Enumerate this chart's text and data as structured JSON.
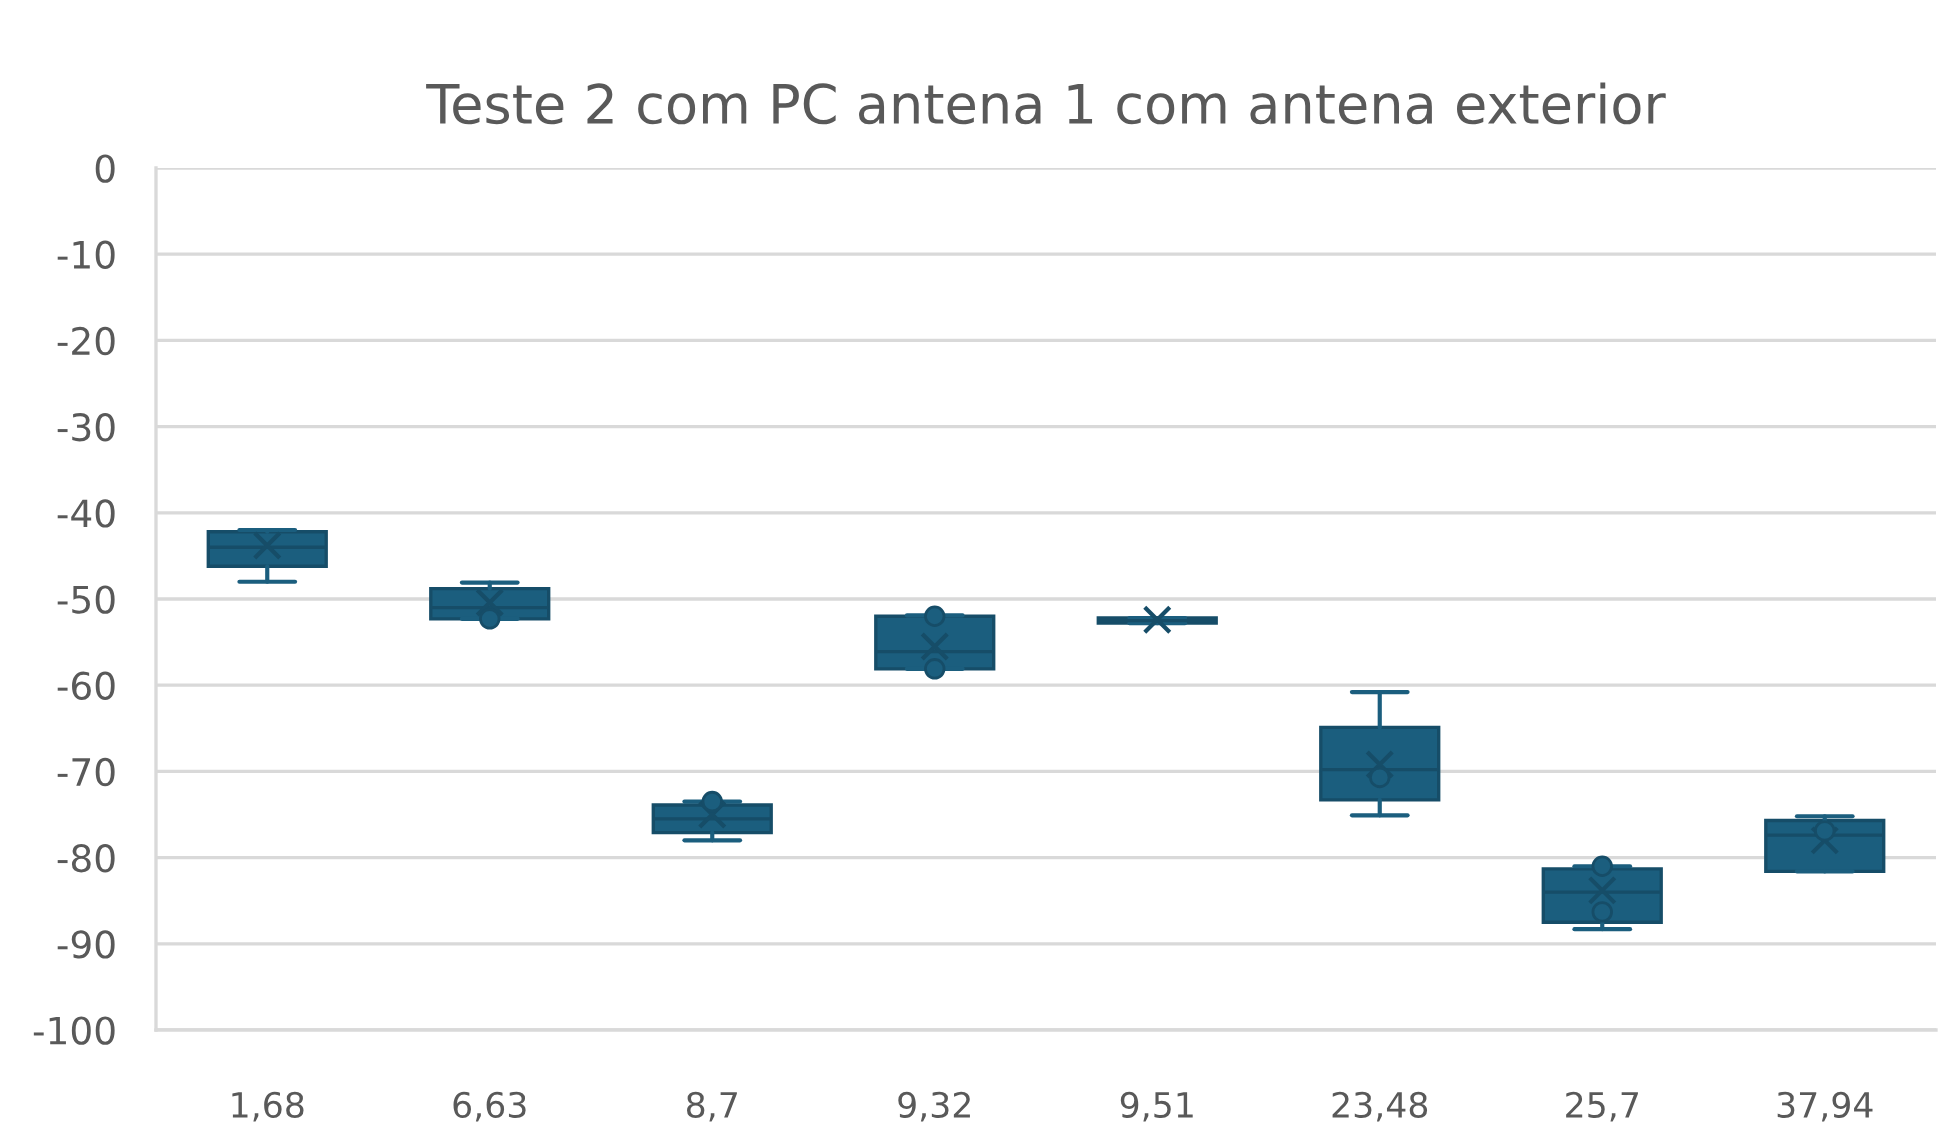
{
  "chart_data": {
    "type": "box",
    "title": "Teste 2 com PC antena 1 com antena exterior",
    "categories": [
      "1,68",
      "6,63",
      "8,7",
      "9,32",
      "9,51",
      "23,48",
      "25,7",
      "37,94"
    ],
    "series": [
      {
        "color": "#1b5e7e",
        "boxes": [
          {
            "low": -48,
            "q1": -46.2,
            "median": -44,
            "q3": -42.2,
            "high": -42,
            "mean": -43.8
          },
          {
            "low": -52.3,
            "q1": -52.3,
            "median": -51,
            "q3": -48.8,
            "high": -48.1,
            "mean": -50.4
          },
          {
            "low": -78,
            "q1": -77.1,
            "median": -75.5,
            "q3": -73.9,
            "high": -73.5,
            "mean": -75
          },
          {
            "low": -58.1,
            "q1": -58.1,
            "median": -56.1,
            "q3": -52,
            "high": -51.9,
            "mean": -55.5
          },
          {
            "low": -52.8,
            "q1": -52.8,
            "median": -52.5,
            "q3": -52.2,
            "high": -52.2,
            "mean": -52.4
          },
          {
            "low": -75.1,
            "q1": -73.3,
            "median": -69.8,
            "q3": -64.9,
            "high": -60.8,
            "mean": -69.2
          },
          {
            "low": -88.3,
            "q1": -87.5,
            "median": -84,
            "q3": -81.3,
            "high": -81,
            "mean": -83.8
          },
          {
            "low": -81.6,
            "q1": -81.6,
            "median": -77.4,
            "q3": -75.7,
            "high": -75.2,
            "mean": -78
          }
        ]
      },
      {
        "type": "scatter",
        "color": "#1b5e7e",
        "marker": "circle",
        "x": [
          "6,63",
          "8,7",
          "9,32",
          "9,32",
          "23,48",
          "25,7",
          "25,7",
          "37,94"
        ],
        "values": [
          -52.3,
          -73.5,
          -52,
          -58.1,
          -70.7,
          -81,
          -86.3,
          -76.9
        ]
      }
    ],
    "ylim": [
      -100,
      0
    ],
    "yticks": [
      0,
      -10,
      -20,
      -30,
      -40,
      -50,
      -60,
      -70,
      -80,
      -90,
      -100
    ],
    "grid": "y"
  }
}
